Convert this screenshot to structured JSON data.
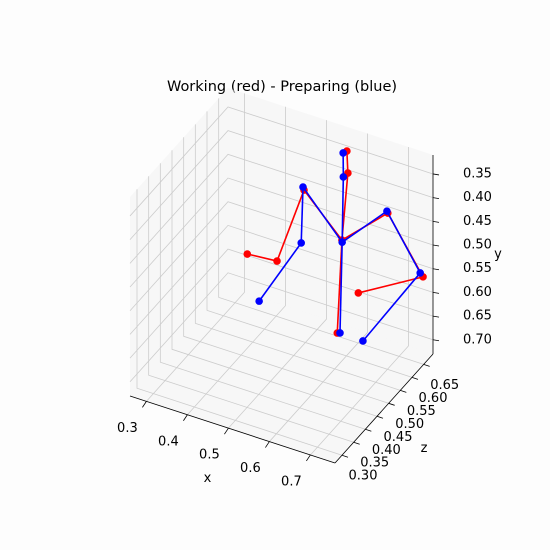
{
  "chart_data": {
    "type": "scatter3d",
    "title": "Working (red) - Preparing (blue)",
    "xlabel": "x",
    "ylabel": "y",
    "zlabel": "z",
    "xlim": [
      0.26,
      0.76
    ],
    "ylim": [
      0.73,
      0.31
    ],
    "zlim": [
      0.27,
      0.69
    ],
    "xticks": [
      0.3,
      0.4,
      0.5,
      0.6,
      0.7
    ],
    "yticks": [
      0.35,
      {
        "value": 0.4,
        "label": "0.40"
      },
      0.45,
      {
        "value": 0.5,
        "label": "0.50"
      },
      0.55,
      {
        "value": 0.6,
        "label": "0.60"
      },
      0.65,
      {
        "value": 0.7,
        "label": "0.70"
      }
    ],
    "zticks": [
      {
        "value": 0.3,
        "label": "0.30"
      },
      0.35,
      {
        "value": 0.4,
        "label": "0.40"
      },
      0.45,
      {
        "value": 0.5,
        "label": "0.50"
      },
      0.55,
      {
        "value": 0.6,
        "label": "0.60"
      },
      0.65
    ],
    "grid": true,
    "series": [
      {
        "color": "#ff0000",
        "x": [
          0.575,
          0.582,
          0.58,
          0.568,
          0.504,
          0.453,
          0.385,
          0.701,
          0.755,
          0.604
        ],
        "y": [
          0.33,
          0.37,
          0.5,
          0.7,
          0.4,
          0.55,
          0.55,
          0.4,
          0.55,
          0.62
        ],
        "z": [
          0.646,
          0.638,
          0.616,
          0.617,
          0.587,
          0.561,
          0.553,
          0.6,
          0.656,
          0.644
        ],
        "edges": [
          [
            0,
            1
          ],
          [
            1,
            2
          ],
          [
            2,
            3
          ],
          [
            2,
            4
          ],
          [
            4,
            5
          ],
          [
            5,
            6
          ],
          [
            2,
            7
          ],
          [
            7,
            8
          ],
          [
            8,
            9
          ]
        ]
      },
      {
        "color": "#0000ff",
        "x": [
          0.571,
          0.58,
          0.584,
          0.573,
          0.497,
          0.508,
          0.431,
          0.696,
          0.743,
          0.646
        ],
        "y": [
          0.33,
          0.37,
          0.5,
          0.7,
          0.4,
          0.5,
          0.62,
          0.4,
          0.55,
          0.68
        ],
        "z": [
          0.637,
          0.622,
          0.61,
          0.62,
          0.595,
          0.568,
          0.523,
          0.605,
          0.665,
          0.59
        ],
        "edges": [
          [
            0,
            1
          ],
          [
            1,
            2
          ],
          [
            2,
            3
          ],
          [
            2,
            4
          ],
          [
            4,
            5
          ],
          [
            5,
            6
          ],
          [
            2,
            7
          ],
          [
            7,
            8
          ],
          [
            8,
            9
          ]
        ]
      }
    ]
  }
}
